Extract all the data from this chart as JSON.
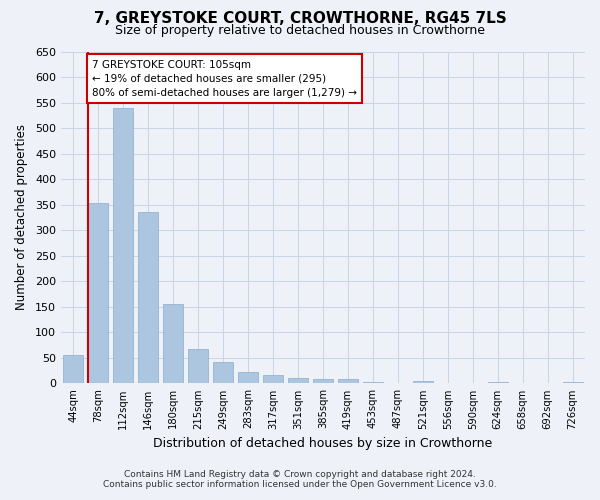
{
  "title": "7, GREYSTOKE COURT, CROWTHORNE, RG45 7LS",
  "subtitle": "Size of property relative to detached houses in Crowthorne",
  "xlabel": "Distribution of detached houses by size in Crowthorne",
  "ylabel": "Number of detached properties",
  "categories": [
    "44sqm",
    "78sqm",
    "112sqm",
    "146sqm",
    "180sqm",
    "215sqm",
    "249sqm",
    "283sqm",
    "317sqm",
    "351sqm",
    "385sqm",
    "419sqm",
    "453sqm",
    "487sqm",
    "521sqm",
    "556sqm",
    "590sqm",
    "624sqm",
    "658sqm",
    "692sqm",
    "726sqm"
  ],
  "values": [
    55,
    353,
    540,
    335,
    155,
    68,
    42,
    23,
    17,
    10,
    8,
    8,
    3,
    0,
    4,
    0,
    0,
    3,
    0,
    0,
    3
  ],
  "bar_color": "#adc6e0",
  "bar_edge_color": "#89aecb",
  "grid_color": "#c8d4e4",
  "background_color": "#eef2f8",
  "annotation_text_line1": "7 GREYSTOKE COURT: 105sqm",
  "annotation_text_line2": "← 19% of detached houses are smaller (295)",
  "annotation_text_line3": "80% of semi-detached houses are larger (1,279) →",
  "annotation_box_color": "#ffffff",
  "annotation_box_edge_color": "#cc0000",
  "vline_color": "#cc0000",
  "footer_line1": "Contains HM Land Registry data © Crown copyright and database right 2024.",
  "footer_line2": "Contains public sector information licensed under the Open Government Licence v3.0.",
  "ylim": [
    0,
    650
  ],
  "vline_x_index": 1,
  "vline_x_offset": -0.4,
  "figsize": [
    6.0,
    5.0
  ],
  "dpi": 100
}
